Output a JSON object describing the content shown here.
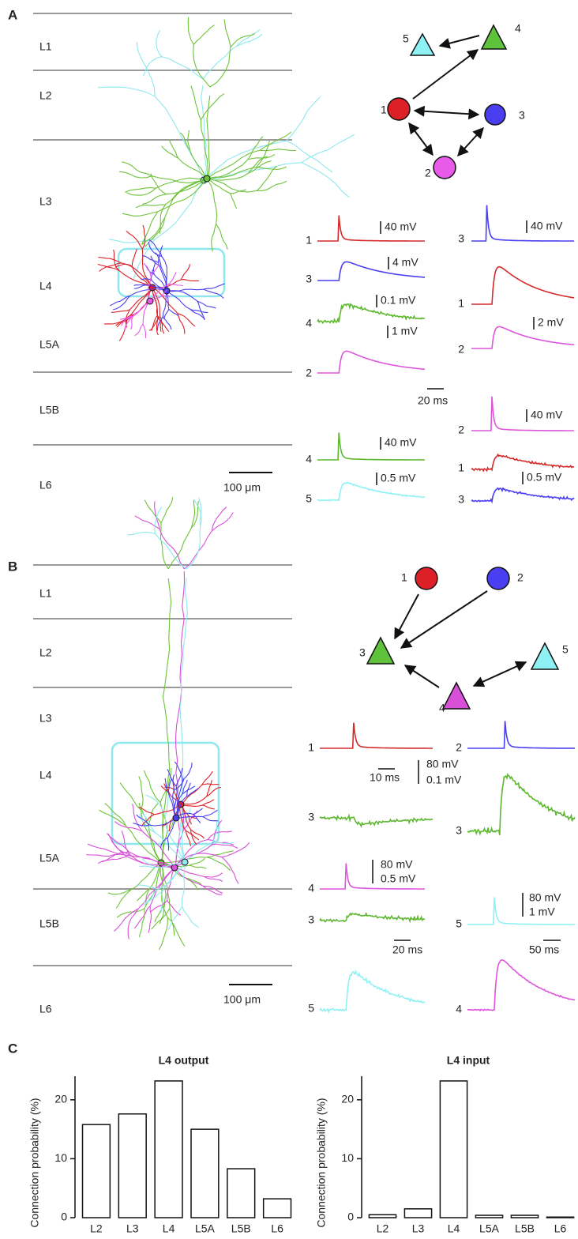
{
  "panel_a": {
    "label": "A",
    "layers": [
      "L1",
      "L2",
      "L3",
      "L4",
      "L5A",
      "L5B",
      "L6"
    ],
    "scale_bar": "100 μm",
    "nodes": [
      "5",
      "4",
      "1",
      "3",
      "2"
    ],
    "trace_labels": [
      "1",
      "3",
      "4",
      "2",
      "4",
      "5",
      "3",
      "1",
      "2",
      "2",
      "1",
      "3"
    ],
    "scale_labels": [
      "40 mV",
      "4 mV",
      "0.1 mV",
      "1 mV",
      "20 ms",
      "40 mV",
      "0.5 mV",
      "40 mV",
      "2 mV",
      "40 mV",
      "0.5 mV"
    ]
  },
  "panel_b": {
    "label": "B",
    "layers": [
      "L1",
      "L2",
      "L3",
      "L4",
      "L5A",
      "L5B",
      "L6"
    ],
    "scale_bar": "100 μm",
    "nodes": [
      "1",
      "2",
      "3",
      "5",
      "4"
    ],
    "trace_labels": [
      "1",
      "2",
      "3",
      "3",
      "4",
      "3",
      "5",
      "5",
      "4"
    ],
    "scale_labels": [
      "10 ms",
      "80 mV",
      "0.1 mV",
      "80 mV",
      "0.5 mV",
      "20 ms",
      "80 mV",
      "1 mV",
      "50 ms"
    ]
  },
  "panel_c": {
    "label": "C"
  },
  "chart_data": [
    {
      "type": "bar",
      "title": "L4 output",
      "y_label": "Connection probability (%)",
      "categories": [
        "L2",
        "L3",
        "L4",
        "L5A",
        "L5B",
        "L6"
      ],
      "values": [
        15.8,
        17.6,
        23.2,
        15,
        8.3,
        3.2
      ],
      "ylim": [
        0,
        24
      ],
      "yticks": [
        0,
        10,
        20
      ],
      "color": "#ffffff"
    },
    {
      "type": "bar",
      "title": "L4 input",
      "y_label": "Connection probability (%)",
      "categories": [
        "L2",
        "L3",
        "L4",
        "L5A",
        "L5B",
        "L6"
      ],
      "values": [
        0.5,
        1.5,
        23.2,
        0.4,
        0.4,
        0.1
      ],
      "ylim": [
        0,
        24
      ],
      "yticks": [
        0,
        10,
        20
      ],
      "color": "#ffffff"
    }
  ]
}
